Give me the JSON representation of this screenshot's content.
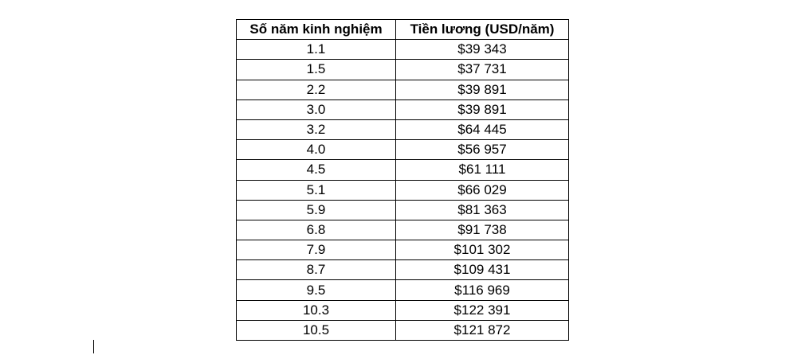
{
  "table": {
    "headers": [
      "Số năm kinh nghiệm",
      "Tiền lương (USD/năm)"
    ],
    "rows": [
      [
        "1.1",
        "$39 343"
      ],
      [
        "1.5",
        "$37 731"
      ],
      [
        "2.2",
        "$39 891"
      ],
      [
        "3.0",
        "$39 891"
      ],
      [
        "3.2",
        "$64 445"
      ],
      [
        "4.0",
        "$56 957"
      ],
      [
        "4.5",
        "$61 111"
      ],
      [
        "5.1",
        "$66 029"
      ],
      [
        "5.9",
        "$81 363"
      ],
      [
        "6.8",
        "$91 738"
      ],
      [
        "7.9",
        "$101 302"
      ],
      [
        "8.7",
        "$109 431"
      ],
      [
        "9.5",
        "$116 969"
      ],
      [
        "10.3",
        "$122 391"
      ],
      [
        "10.5",
        "$121 872"
      ]
    ]
  }
}
